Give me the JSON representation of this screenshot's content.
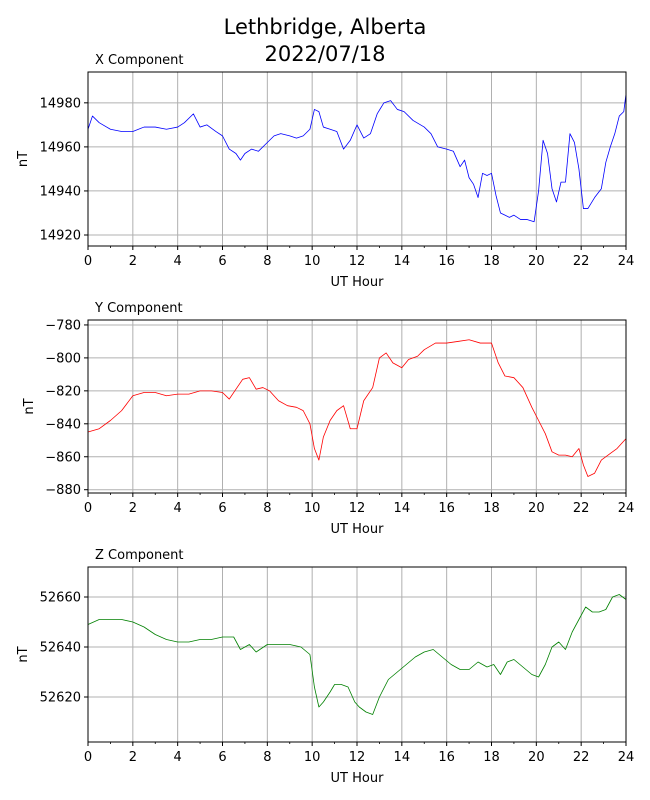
{
  "figure": {
    "title_line1": "Lethbridge, Alberta",
    "title_line2": "2022/07/18"
  },
  "chart_data": [
    {
      "type": "line",
      "title": "X Component",
      "xlabel": "UT Hour",
      "ylabel": "nT",
      "xlim": [
        0,
        24
      ],
      "ylim": [
        14915,
        14994
      ],
      "xticks": [
        0,
        2,
        4,
        6,
        8,
        10,
        12,
        14,
        16,
        18,
        20,
        22,
        24
      ],
      "yticks": [
        14920,
        14940,
        14960,
        14980
      ],
      "grid": true,
      "color": "#0000ff",
      "series": [
        {
          "x": [
            0,
            0.2,
            0.5,
            1,
            1.5,
            2,
            2.5,
            3,
            3.5,
            4,
            4.3,
            4.7,
            5,
            5.3,
            5.7,
            6,
            6.3,
            6.6,
            6.8,
            7,
            7.3,
            7.6,
            8,
            8.3,
            8.6,
            9,
            9.3,
            9.6,
            9.9,
            10.1,
            10.3,
            10.5,
            10.8,
            11.1,
            11.4,
            11.7,
            12,
            12.3,
            12.6,
            12.9,
            13.2,
            13.5,
            13.8,
            14.1,
            14.5,
            15,
            15.3,
            15.6,
            16,
            16.3,
            16.6,
            16.8,
            17,
            17.2,
            17.4,
            17.6,
            17.8,
            18,
            18.2,
            18.4,
            18.6,
            18.8,
            19,
            19.3,
            19.6,
            19.9,
            20.1,
            20.3,
            20.5,
            20.7,
            20.9,
            21.1,
            21.3,
            21.5,
            21.7,
            21.9,
            22.1,
            22.3,
            22.6,
            22.9,
            23.1,
            23.3,
            23.5,
            23.7,
            23.9,
            24
          ],
          "y": [
            14968,
            14974,
            14971,
            14968,
            14967,
            14967,
            14969,
            14969,
            14968,
            14969,
            14971,
            14975,
            14969,
            14970,
            14967,
            14965,
            14959,
            14957,
            14954,
            14957,
            14959,
            14958,
            14962,
            14965,
            14966,
            14965,
            14964,
            14965,
            14968,
            14977,
            14976,
            14969,
            14968,
            14967,
            14959,
            14963,
            14970,
            14964,
            14966,
            14975,
            14980,
            14981,
            14977,
            14976,
            14972,
            14969,
            14966,
            14960,
            14959,
            14958,
            14951,
            14954,
            14946,
            14943,
            14937,
            14948,
            14947,
            14948,
            14938,
            14930,
            14929,
            14928,
            14929,
            14927,
            14927,
            14926,
            14940,
            14963,
            14957,
            14941,
            14935,
            14944,
            14944,
            14966,
            14962,
            14950,
            14932,
            14932,
            14937,
            14941,
            14953,
            14960,
            14966,
            14974,
            14976,
            14984
          ]
        }
      ]
    },
    {
      "type": "line",
      "title": "Y Component",
      "xlabel": "UT Hour",
      "ylabel": "nT",
      "xlim": [
        0,
        24
      ],
      "ylim": [
        -882,
        -777
      ],
      "xticks": [
        0,
        2,
        4,
        6,
        8,
        10,
        12,
        14,
        16,
        18,
        20,
        22,
        24
      ],
      "yticks": [
        -880,
        -860,
        -840,
        -820,
        -800,
        -780
      ],
      "grid": true,
      "color": "#ff0000",
      "series": [
        {
          "x": [
            0,
            0.5,
            1,
            1.5,
            2,
            2.5,
            3,
            3.5,
            4,
            4.5,
            5,
            5.5,
            6,
            6.3,
            6.6,
            6.9,
            7.2,
            7.5,
            7.8,
            8.1,
            8.5,
            8.9,
            9.3,
            9.6,
            9.9,
            10.1,
            10.3,
            10.5,
            10.8,
            11.1,
            11.4,
            11.7,
            12,
            12.3,
            12.7,
            13,
            13.3,
            13.6,
            14,
            14.3,
            14.7,
            15,
            15.5,
            16,
            16.5,
            17,
            17.5,
            18,
            18.3,
            18.6,
            19,
            19.4,
            19.8,
            20.1,
            20.4,
            20.7,
            21,
            21.3,
            21.6,
            21.9,
            22.1,
            22.3,
            22.6,
            22.9,
            23.3,
            23.6,
            24
          ],
          "y": [
            -845,
            -843,
            -838,
            -832,
            -823,
            -821,
            -821,
            -823,
            -822,
            -822,
            -820,
            -820,
            -821,
            -825,
            -819,
            -813,
            -812,
            -819,
            -818,
            -820,
            -826,
            -829,
            -830,
            -832,
            -840,
            -855,
            -862,
            -848,
            -838,
            -832,
            -829,
            -843,
            -843,
            -826,
            -818,
            -800,
            -797,
            -803,
            -806,
            -801,
            -799,
            -795,
            -791,
            -791,
            -790,
            -789,
            -791,
            -791,
            -803,
            -811,
            -812,
            -818,
            -830,
            -838,
            -846,
            -857,
            -859,
            -859,
            -860,
            -855,
            -865,
            -872,
            -870,
            -862,
            -858,
            -855,
            -849
          ]
        }
      ]
    },
    {
      "type": "line",
      "title": "Z Component",
      "xlabel": "UT Hour",
      "ylabel": "nT",
      "xlim": [
        0,
        24
      ],
      "ylim": [
        52602,
        52672
      ],
      "xticks": [
        0,
        2,
        4,
        6,
        8,
        10,
        12,
        14,
        16,
        18,
        20,
        22,
        24
      ],
      "yticks": [
        52620,
        52640,
        52660
      ],
      "grid": true,
      "color": "#008000",
      "series": [
        {
          "x": [
            0,
            0.5,
            1,
            1.5,
            2,
            2.5,
            3,
            3.5,
            4,
            4.5,
            5,
            5.5,
            6,
            6.5,
            6.8,
            7.2,
            7.5,
            8,
            8.5,
            9,
            9.5,
            9.9,
            10.1,
            10.3,
            10.5,
            10.8,
            11,
            11.3,
            11.6,
            11.9,
            12.1,
            12.4,
            12.7,
            13,
            13.4,
            13.8,
            14.2,
            14.6,
            15,
            15.4,
            15.8,
            16.2,
            16.6,
            17,
            17.4,
            17.8,
            18.1,
            18.4,
            18.7,
            19,
            19.4,
            19.8,
            20.1,
            20.4,
            20.7,
            21,
            21.3,
            21.6,
            21.9,
            22.2,
            22.5,
            22.8,
            23.1,
            23.4,
            23.7,
            24
          ],
          "y": [
            52649,
            52651,
            52651,
            52651,
            52650,
            52648,
            52645,
            52643,
            52642,
            52642,
            52643,
            52643,
            52644,
            52644,
            52639,
            52641,
            52638,
            52641,
            52641,
            52641,
            52640,
            52637,
            52624,
            52616,
            52618,
            52622,
            52625,
            52625,
            52624,
            52618,
            52616,
            52614,
            52613,
            52620,
            52627,
            52630,
            52633,
            52636,
            52638,
            52639,
            52636,
            52633,
            52631,
            52631,
            52634,
            52632,
            52633,
            52629,
            52634,
            52635,
            52632,
            52629,
            52628,
            52633,
            52640,
            52642,
            52639,
            52646,
            52651,
            52656,
            52654,
            52654,
            52655,
            52660,
            52661,
            52659
          ]
        }
      ]
    }
  ]
}
